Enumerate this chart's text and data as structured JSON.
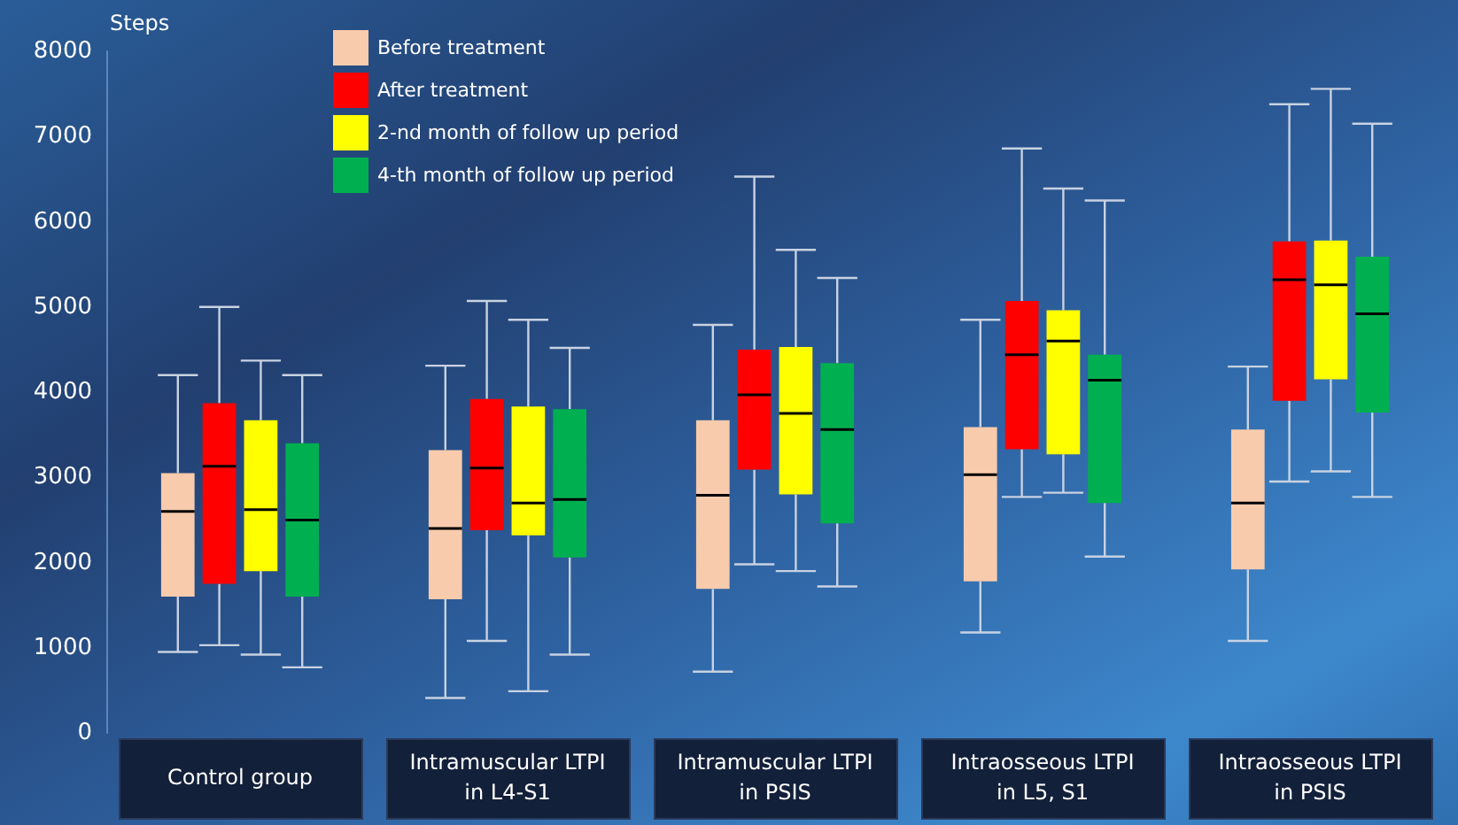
{
  "chart_data": {
    "type": "box",
    "ylabel": "Steps",
    "categories": [
      "Control group",
      "Intramuscular LTPI\nin L4-S1",
      "Intramuscular LTPI\nin PSIS",
      "Intraosseous LTPI\nin L5, S1",
      "Intraosseous LTPI\nin PSIS"
    ],
    "series": [
      {
        "name": "Before treatment",
        "color": "#f8cbad",
        "boxes": [
          {
            "low": 950,
            "q1": 1600,
            "median": 2600,
            "q3": 3050,
            "high": 4200
          },
          {
            "low": 410,
            "q1": 1570,
            "median": 2400,
            "q3": 3320,
            "high": 4310
          },
          {
            "low": 720,
            "q1": 1690,
            "median": 2790,
            "q3": 3670,
            "high": 4790
          },
          {
            "low": 1180,
            "q1": 1780,
            "median": 3030,
            "q3": 3590,
            "high": 4850
          },
          {
            "low": 1080,
            "q1": 1920,
            "median": 2700,
            "q3": 3560,
            "high": 4300
          }
        ]
      },
      {
        "name": "After treatment",
        "color": "#ff0000",
        "boxes": [
          {
            "low": 1030,
            "q1": 1750,
            "median": 3130,
            "q3": 3870,
            "high": 5000
          },
          {
            "low": 1080,
            "q1": 2380,
            "median": 3110,
            "q3": 3920,
            "high": 5070
          },
          {
            "low": 1980,
            "q1": 3090,
            "median": 3970,
            "q3": 4500,
            "high": 6530
          },
          {
            "low": 2770,
            "q1": 3330,
            "median": 4440,
            "q3": 5070,
            "high": 6860
          },
          {
            "low": 2950,
            "q1": 3900,
            "median": 5320,
            "q3": 5770,
            "high": 7380
          }
        ]
      },
      {
        "name": "2-nd month of follow up period",
        "color": "#ffff00",
        "boxes": [
          {
            "low": 920,
            "q1": 1900,
            "median": 2620,
            "q3": 3670,
            "high": 4370
          },
          {
            "low": 490,
            "q1": 2320,
            "median": 2700,
            "q3": 3830,
            "high": 4850
          },
          {
            "low": 1900,
            "q1": 2800,
            "median": 3750,
            "q3": 4530,
            "high": 5670
          },
          {
            "low": 2820,
            "q1": 3270,
            "median": 4600,
            "q3": 4960,
            "high": 6390
          },
          {
            "low": 3070,
            "q1": 4150,
            "median": 5260,
            "q3": 5780,
            "high": 7560
          }
        ]
      },
      {
        "name": "4-th month of follow up period",
        "color": "#00b050",
        "boxes": [
          {
            "low": 770,
            "q1": 1600,
            "median": 2500,
            "q3": 3400,
            "high": 4200
          },
          {
            "low": 920,
            "q1": 2060,
            "median": 2740,
            "q3": 3800,
            "high": 4520
          },
          {
            "low": 1720,
            "q1": 2460,
            "median": 3560,
            "q3": 4340,
            "high": 5340
          },
          {
            "low": 2070,
            "q1": 2700,
            "median": 4140,
            "q3": 4440,
            "high": 6250
          },
          {
            "low": 2770,
            "q1": 3760,
            "median": 4920,
            "q3": 5590,
            "high": 7150
          }
        ]
      }
    ],
    "ylim": [
      0,
      8000
    ],
    "yticks": [
      0,
      1000,
      2000,
      3000,
      4000,
      5000,
      6000,
      7000,
      8000
    ],
    "grid": false,
    "legend": "top left"
  }
}
